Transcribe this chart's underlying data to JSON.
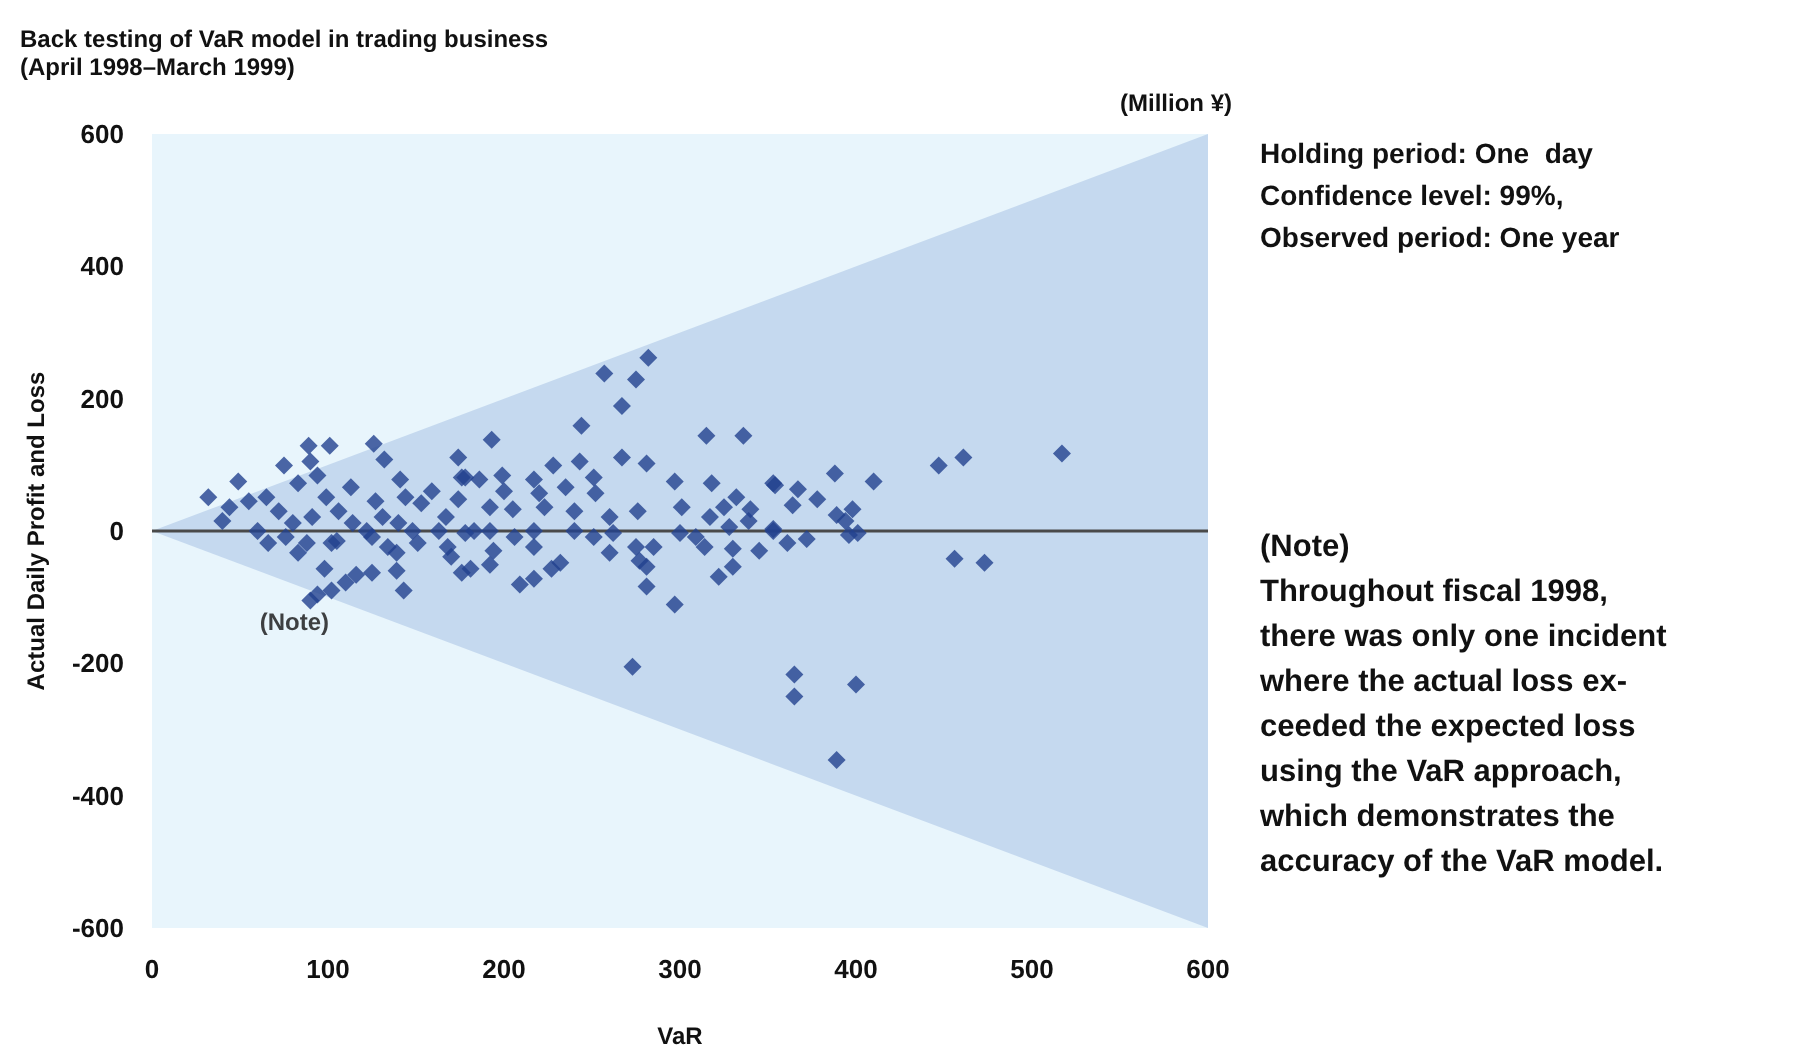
{
  "chart_data": {
    "type": "scatter",
    "title": "Back testing of VaR model in trading business",
    "subtitle": "(April 1998–March 1999)",
    "xlabel": "VaR",
    "ylabel": "Actual Daily Profit and Loss",
    "annotations": [
      "(Million ¥)",
      "Holding period: One  day\nConfidence level: 99%,\nObserved period: One year",
      "(Note)\nThroughout fiscal 1998,\nthere was only one incident\nwhere the actual loss ex-\nceeded the expected loss\nusing the VaR approach,\nwhich demonstrates the\naccuracy of the VaR model.",
      {
        "text": "(Note)",
        "x": 90,
        "y": -105
      }
    ],
    "xlim": [
      0,
      600
    ],
    "ylim": [
      -600,
      600
    ],
    "xticks": [
      0,
      100,
      200,
      300,
      400,
      500,
      600
    ],
    "yticks": [
      -600,
      -400,
      -200,
      0,
      200,
      400,
      600
    ],
    "grid": false,
    "series": [
      {
        "type": "line",
        "marker": "none",
        "color": "#4a4a4a",
        "x": [
          0,
          600
        ],
        "values": [
          0,
          0
        ],
        "lower": [
          0,
          -600
        ],
        "upper": [
          0,
          600
        ]
      },
      {
        "marker": "diamond",
        "color": "#22418e",
        "x": [
          517,
          447,
          461,
          456,
          473,
          354,
          367,
          364,
          378,
          388,
          410,
          398,
          389,
          394,
          396,
          401,
          353,
          361,
          372,
          297,
          273,
          365,
          365,
          400,
          389,
          282,
          257,
          275,
          267,
          244,
          193,
          315,
          336,
          267,
          281,
          243,
          297,
          318,
          353,
          228,
          199,
          251,
          217,
          235,
          200,
          252,
          301,
          332,
          325,
          340,
          317,
          276,
          192,
          205,
          240,
          186,
          178,
          220,
          223,
          240,
          260,
          328,
          339,
          300,
          309,
          183,
          192,
          206,
          217,
          251,
          262,
          275,
          285,
          314,
          260,
          330,
          345,
          353,
          194,
          217,
          192,
          181,
          232,
          227,
          217,
          209,
          281,
          277,
          281,
          322,
          330,
          89,
          101,
          126,
          75,
          132,
          90,
          94,
          49,
          141,
          174,
          176,
          32,
          44,
          40,
          55,
          83,
          113,
          65,
          72,
          99,
          127,
          144,
          159,
          153,
          167,
          174,
          60,
          80,
          91,
          106,
          114,
          122,
          131,
          140,
          148,
          163,
          178,
          76,
          88,
          105,
          125,
          134,
          151,
          168,
          66,
          83,
          102,
          139,
          170,
          176,
          98,
          139,
          125,
          116,
          110,
          102,
          94,
          90,
          143
        ],
        "values": [
          117,
          99,
          111,
          -42,
          -48,
          69,
          63,
          39,
          48,
          87,
          75,
          33,
          24,
          15,
          -6,
          -3,
          3,
          -18,
          -12,
          -111,
          -205,
          -217,
          -250,
          -232,
          -346,
          262,
          238,
          229,
          189,
          159,
          138,
          144,
          144,
          111,
          102,
          105,
          75,
          72,
          72,
          99,
          84,
          81,
          78,
          66,
          60,
          57,
          36,
          51,
          36,
          33,
          21,
          30,
          36,
          33,
          30,
          78,
          81,
          57,
          36,
          0,
          21,
          6,
          15,
          -3,
          -9,
          0,
          0,
          -9,
          0,
          -9,
          -3,
          -24,
          -24,
          -24,
          -33,
          -27,
          -30,
          0,
          -30,
          -24,
          -51,
          -57,
          -48,
          -57,
          -72,
          -81,
          -54,
          -45,
          -84,
          -69,
          -54,
          129,
          129,
          132,
          99,
          108,
          105,
          84,
          75,
          78,
          111,
          81,
          51,
          36,
          15,
          45,
          72,
          66,
          51,
          30,
          51,
          45,
          51,
          60,
          42,
          21,
          48,
          0,
          12,
          21,
          30,
          12,
          0,
          21,
          12,
          0,
          0,
          -3,
          -9,
          -18,
          -15,
          -9,
          -24,
          -18,
          -24,
          -18,
          -33,
          -18,
          -33,
          -39,
          -63,
          -57,
          -60,
          -63,
          -66,
          -78,
          -90,
          -96,
          -105,
          -90
        ]
      }
    ]
  }
}
